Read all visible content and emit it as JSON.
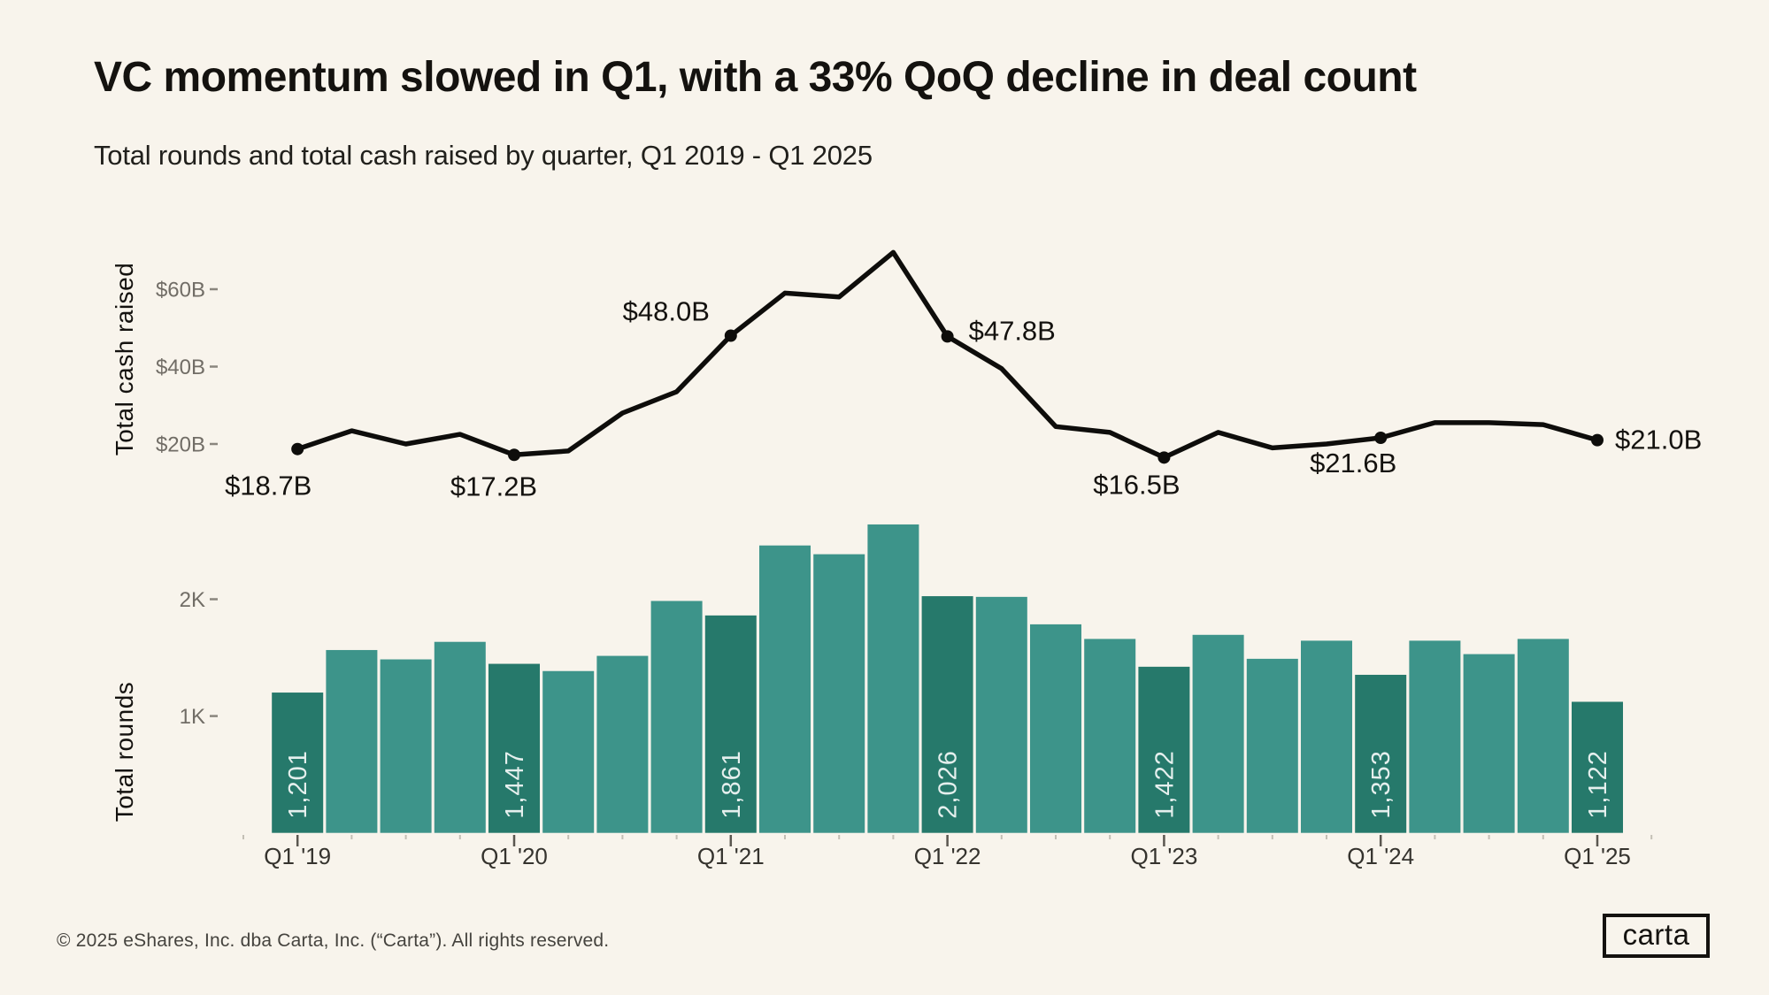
{
  "page": {
    "background_color": "#f8f4ec"
  },
  "header": {
    "title": "VC momentum slowed in Q1, with a 33% QoQ decline in deal count",
    "subtitle": "Total rounds and total cash raised by quarter, Q1 2019 - Q1 2025"
  },
  "footer": {
    "copyright": "© 2025 eShares, Inc. dba Carta, Inc. (“Carta”). All rights reserved.",
    "logo_text": "carta"
  },
  "chart_data": [
    {
      "type": "line",
      "ylabel": "Total cash raised",
      "unit": "USD billions",
      "x": [
        "Q1 '19",
        "Q2 '19",
        "Q3 '19",
        "Q4 '19",
        "Q1 '20",
        "Q2 '20",
        "Q3 '20",
        "Q4 '20",
        "Q1 '21",
        "Q2 '21",
        "Q3 '21",
        "Q4 '21",
        "Q1 '22",
        "Q2 '22",
        "Q3 '22",
        "Q4 '22",
        "Q1 '23",
        "Q2 '23",
        "Q3 '23",
        "Q4 '23",
        "Q1 '24",
        "Q2 '24",
        "Q3 '24",
        "Q4 '24",
        "Q1 '25"
      ],
      "values": [
        18.7,
        23.4,
        20.0,
        22.5,
        17.2,
        18.2,
        28.0,
        33.5,
        48.0,
        59.0,
        58.0,
        69.5,
        47.8,
        39.5,
        24.5,
        23.0,
        16.5,
        23.0,
        19.0,
        20.0,
        21.6,
        25.5,
        25.5,
        25.0,
        21.0
      ],
      "yticks": [
        {
          "value": 20,
          "label": "$20B"
        },
        {
          "value": 40,
          "label": "$40B"
        },
        {
          "value": 60,
          "label": "$60B"
        }
      ],
      "point_labels": {
        "0": "$18.7B",
        "4": "$17.2B",
        "8": "$48.0B",
        "12": "$47.8B",
        "16": "$16.5B",
        "20": "$21.6B",
        "24": "$21.0B"
      },
      "line_color": "#0e0d0b",
      "grid": false,
      "legend": "none"
    },
    {
      "type": "bar",
      "ylabel": "Total rounds",
      "categories": [
        "Q1 '19",
        "Q2 '19",
        "Q3 '19",
        "Q4 '19",
        "Q1 '20",
        "Q2 '20",
        "Q3 '20",
        "Q4 '20",
        "Q1 '21",
        "Q2 '21",
        "Q3 '21",
        "Q4 '21",
        "Q1 '22",
        "Q2 '22",
        "Q3 '22",
        "Q4 '22",
        "Q1 '23",
        "Q2 '23",
        "Q3 '23",
        "Q4 '23",
        "Q1 '24",
        "Q2 '24",
        "Q3 '24",
        "Q4 '24",
        "Q1 '25"
      ],
      "values": [
        1201,
        1565,
        1485,
        1635,
        1447,
        1385,
        1515,
        1985,
        1861,
        2460,
        2385,
        2640,
        2026,
        2020,
        1785,
        1660,
        1422,
        1695,
        1490,
        1645,
        1353,
        1645,
        1530,
        1660,
        1122
      ],
      "yticks": [
        {
          "value": 1000,
          "label": "1K"
        },
        {
          "value": 2000,
          "label": "2K"
        }
      ],
      "bar_labels": {
        "0": "1,201",
        "4": "1,447",
        "8": "1,861",
        "12": "2,026",
        "16": "1,422",
        "20": "1,353",
        "24": "1,122"
      },
      "bar_color_q1": "#26796b",
      "bar_color_default": "#3d948a",
      "xtick_major_labels": [
        "Q1 '19",
        "Q1 '20",
        "Q1 '21",
        "Q1 '22",
        "Q1 '23",
        "Q1 '24",
        "Q1 '25"
      ],
      "grid": false,
      "legend": "none"
    }
  ]
}
